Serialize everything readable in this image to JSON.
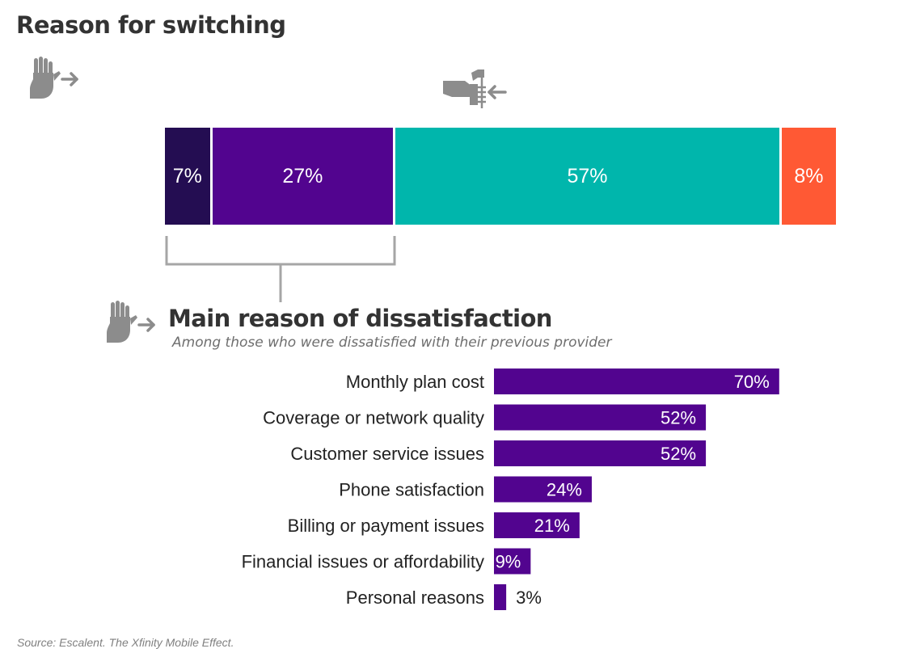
{
  "title": "Reason for switching",
  "colors": {
    "seg1": "#240d52",
    "seg2": "#52048f",
    "seg3": "#00b6ac",
    "seg4": "#ff5934",
    "bar": "#52048f",
    "icon": "#8c8c8c"
  },
  "icons": {
    "stop_hand": "stop-hand-arrow-icon",
    "handshake": "handshake-arrow-icon",
    "dissatisfaction": "stop-hand-arrow-icon"
  },
  "chart_data": [
    {
      "type": "bar",
      "orientation": "horizontal-stacked",
      "title": "Reason for switching",
      "series": [
        {
          "name": "segment-1",
          "value": 7,
          "label": "7%"
        },
        {
          "name": "segment-2",
          "value": 27,
          "label": "27%"
        },
        {
          "name": "segment-3",
          "value": 57,
          "label": "57%"
        },
        {
          "name": "segment-4",
          "value": 8,
          "label": "8%"
        }
      ],
      "xlim": [
        0,
        99
      ]
    },
    {
      "type": "bar",
      "orientation": "horizontal",
      "title": "Main reason of dissatisfaction",
      "subtitle": "Among those who were dissatisfied with their previous provider",
      "categories": [
        "Monthly plan cost",
        "Coverage or network quality",
        "Customer service issues",
        "Phone satisfaction",
        "Billing or payment issues",
        "Financial issues or affordability",
        "Personal reasons"
      ],
      "values": [
        70,
        52,
        52,
        24,
        21,
        9,
        3
      ],
      "labels": [
        "70%",
        "52%",
        "52%",
        "24%",
        "21%",
        "9%",
        "3%"
      ],
      "xlim": [
        0,
        100
      ]
    }
  ],
  "source": "Source: Escalent. The Xfinity Mobile Effect."
}
